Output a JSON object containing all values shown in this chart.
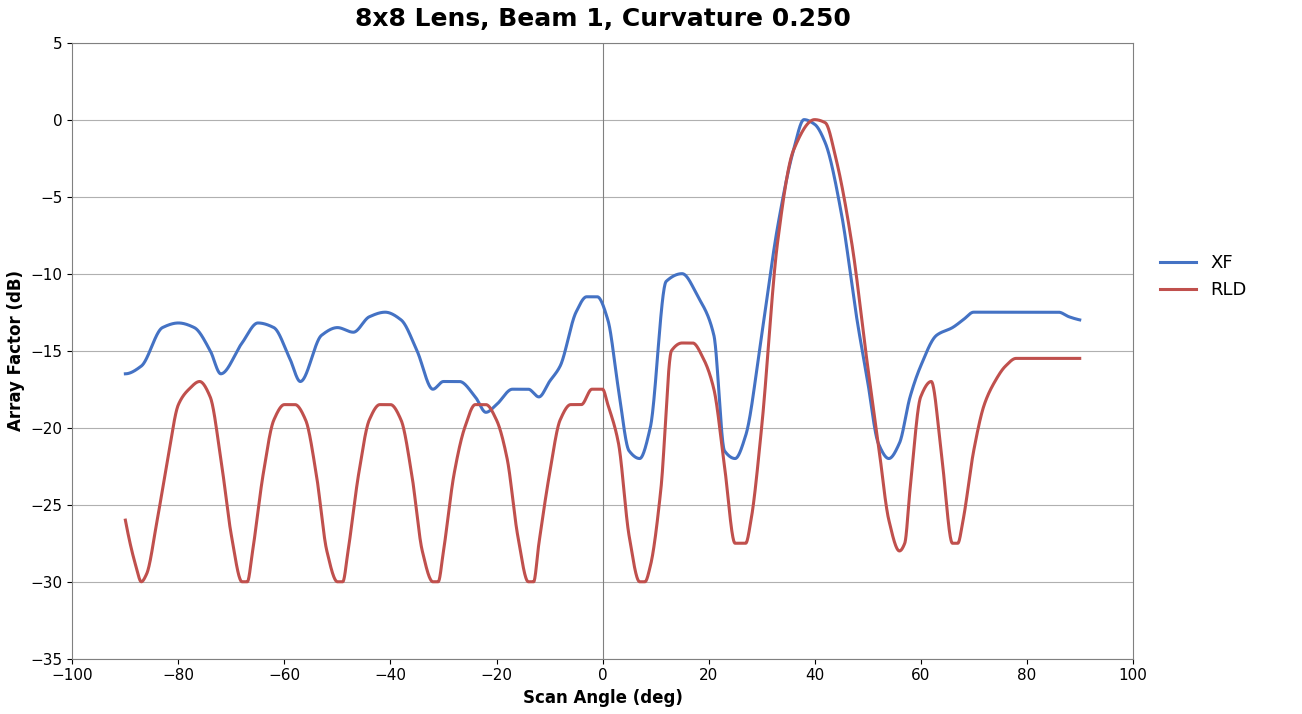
{
  "title": "8x8 Lens, Beam 1, Curvature 0.250",
  "xlabel": "Scan Angle (deg)",
  "ylabel": "Array Factor (dB)",
  "xlim": [
    -100,
    100
  ],
  "ylim": [
    -35,
    5
  ],
  "xticks": [
    -100,
    -80,
    -60,
    -40,
    -20,
    0,
    20,
    40,
    60,
    80,
    100
  ],
  "yticks": [
    -35,
    -30,
    -25,
    -20,
    -15,
    -10,
    -5,
    0,
    5
  ],
  "xf_color": "#4472C4",
  "rld_color": "#C0504D",
  "line_width": 2.2,
  "legend_labels": [
    "XF",
    "RLD"
  ],
  "title_fontsize": 18,
  "axis_fontsize": 12,
  "tick_fontsize": 11,
  "background_color": "#FFFFFF",
  "grid_color": "#B0B0B0"
}
